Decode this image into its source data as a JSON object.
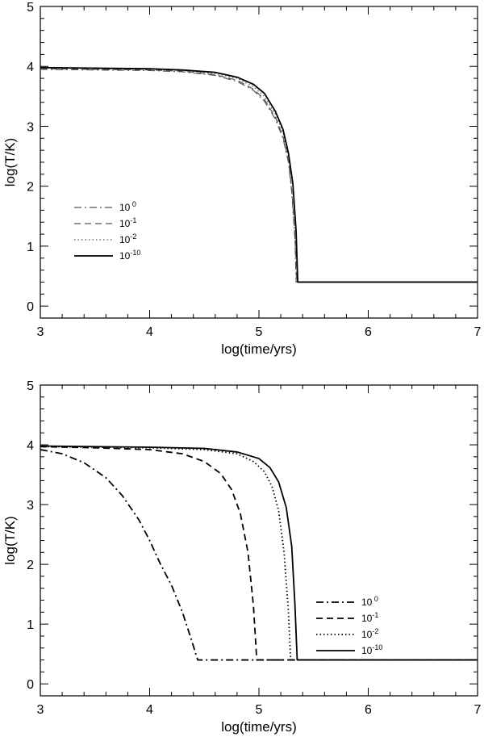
{
  "chart_data": [
    {
      "type": "line",
      "xlabel": "log(time/yrs)",
      "ylabel": "log(T/K)",
      "xlim": [
        3,
        7
      ],
      "ylim": [
        -0.2,
        5
      ],
      "xticks": [
        "3",
        "4",
        "5",
        "6",
        "7"
      ],
      "yticks": [
        "0",
        "1",
        "2",
        "3",
        "4",
        "5"
      ],
      "legend_position": "center-left",
      "series": [
        {
          "name_base": "10",
          "name_exp": " 0",
          "style": "dashdot",
          "width": 1.2,
          "color": "#555555",
          "x": [
            3.0,
            3.5,
            4.0,
            4.3,
            4.6,
            4.8,
            4.95,
            5.05,
            5.15,
            5.22,
            5.27,
            5.3,
            5.33,
            5.34,
            7.0
          ],
          "y": [
            3.95,
            3.94,
            3.93,
            3.91,
            3.85,
            3.75,
            3.6,
            3.42,
            3.12,
            2.8,
            2.4,
            1.9,
            1.1,
            0.4,
            0.4
          ]
        },
        {
          "name_base": "10",
          "name_exp": "-1",
          "style": "dashed",
          "width": 1.2,
          "color": "#555555",
          "x": [
            3.0,
            3.5,
            4.0,
            4.3,
            4.6,
            4.8,
            4.95,
            5.05,
            5.15,
            5.22,
            5.27,
            5.3,
            5.33,
            5.345,
            7.0
          ],
          "y": [
            3.96,
            3.95,
            3.94,
            3.92,
            3.86,
            3.77,
            3.62,
            3.45,
            3.15,
            2.83,
            2.43,
            1.95,
            1.15,
            0.4,
            0.4
          ]
        },
        {
          "name_base": "10",
          "name_exp": "-2",
          "style": "dotted",
          "width": 1.2,
          "color": "#555555",
          "x": [
            3.0,
            3.5,
            4.0,
            4.3,
            4.6,
            4.8,
            4.95,
            5.05,
            5.15,
            5.22,
            5.27,
            5.31,
            5.34,
            5.35,
            7.0
          ],
          "y": [
            3.97,
            3.96,
            3.95,
            3.93,
            3.88,
            3.8,
            3.66,
            3.5,
            3.2,
            2.9,
            2.5,
            2.0,
            1.2,
            0.4,
            0.4
          ]
        },
        {
          "name_base": "10",
          "name_exp": "-10",
          "style": "solid",
          "width": 1.8,
          "color": "#000000",
          "x": [
            3.0,
            3.5,
            4.0,
            4.3,
            4.6,
            4.8,
            4.95,
            5.05,
            5.15,
            5.22,
            5.27,
            5.31,
            5.34,
            5.355,
            7.0
          ],
          "y": [
            3.98,
            3.97,
            3.96,
            3.94,
            3.9,
            3.82,
            3.7,
            3.55,
            3.25,
            2.95,
            2.55,
            2.05,
            1.25,
            0.4,
            0.4
          ]
        }
      ]
    },
    {
      "type": "line",
      "xlabel": "log(time/yrs)",
      "ylabel": "log(T/K)",
      "xlim": [
        3,
        7
      ],
      "ylim": [
        -0.2,
        5
      ],
      "xticks": [
        "3",
        "4",
        "5",
        "6",
        "7"
      ],
      "yticks": [
        "0",
        "1",
        "2",
        "3",
        "4",
        "5"
      ],
      "legend_position": "lower-right",
      "series": [
        {
          "name_base": "10",
          "name_exp": " 0",
          "style": "dashdot",
          "width": 1.8,
          "color": "#000000",
          "x": [
            3.0,
            3.2,
            3.4,
            3.6,
            3.75,
            3.9,
            4.0,
            4.1,
            4.2,
            4.3,
            4.38,
            4.44,
            7.0
          ],
          "y": [
            3.92,
            3.85,
            3.7,
            3.45,
            3.15,
            2.75,
            2.4,
            2.0,
            1.65,
            1.2,
            0.75,
            0.4,
            0.4
          ]
        },
        {
          "name_base": "10",
          "name_exp": "-1",
          "style": "dashed",
          "width": 1.8,
          "color": "#000000",
          "x": [
            3.0,
            3.5,
            4.0,
            4.3,
            4.5,
            4.65,
            4.75,
            4.83,
            4.9,
            4.95,
            4.98,
            7.0
          ],
          "y": [
            3.97,
            3.95,
            3.92,
            3.85,
            3.72,
            3.52,
            3.25,
            2.85,
            2.2,
            1.3,
            0.4,
            0.4
          ]
        },
        {
          "name_base": "10",
          "name_exp": "-2",
          "style": "dotted",
          "width": 1.8,
          "color": "#000000",
          "x": [
            3.0,
            3.5,
            4.0,
            4.5,
            4.8,
            4.95,
            5.05,
            5.12,
            5.18,
            5.23,
            5.27,
            5.29,
            7.0
          ],
          "y": [
            3.97,
            3.96,
            3.95,
            3.92,
            3.85,
            3.72,
            3.55,
            3.3,
            2.9,
            2.2,
            1.2,
            0.4,
            0.4
          ]
        },
        {
          "name_base": "10",
          "name_exp": "-10",
          "style": "solid",
          "width": 1.8,
          "color": "#000000",
          "x": [
            3.0,
            3.5,
            4.0,
            4.5,
            4.8,
            5.0,
            5.1,
            5.18,
            5.25,
            5.3,
            5.33,
            5.35,
            7.0
          ],
          "y": [
            3.98,
            3.97,
            3.96,
            3.94,
            3.88,
            3.77,
            3.62,
            3.38,
            2.95,
            2.3,
            1.3,
            0.4,
            0.4
          ]
        }
      ]
    }
  ]
}
